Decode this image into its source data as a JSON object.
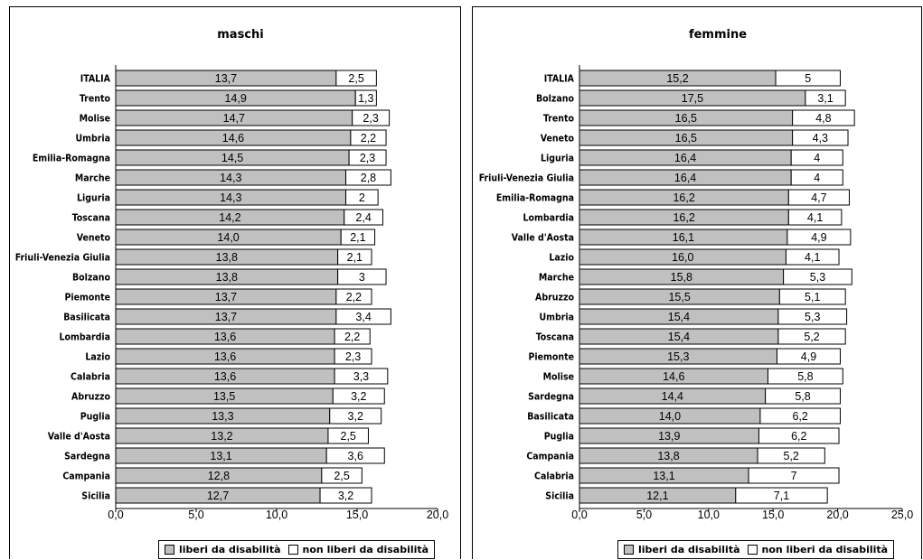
{
  "colors": {
    "free": "#c0c0c0",
    "not_free": "#ffffff",
    "stroke": "#000000"
  },
  "legend": {
    "free_label": "liberi da disabilità",
    "not_free_label": "non liberi da disabilità"
  },
  "chart_data": [
    {
      "type": "bar",
      "orientation": "horizontal",
      "stacked": true,
      "title": "maschi",
      "categories": [
        "ITALIA",
        "Trento",
        "Molise",
        "Umbria",
        "Emilia-Romagna",
        "Marche",
        "Liguria",
        "Toscana",
        "Veneto",
        "Friuli-Venezia Giulia",
        "Bolzano",
        "Piemonte",
        "Basilicata",
        "Lombardia",
        "Lazio",
        "Calabria",
        "Abruzzo",
        "Puglia",
        "Valle d'Aosta",
        "Sardegna",
        "Campania",
        "Sicilia"
      ],
      "series": [
        {
          "name": "liberi da disabilità",
          "values": [
            13.7,
            14.9,
            14.7,
            14.6,
            14.5,
            14.3,
            14.3,
            14.2,
            14.0,
            13.8,
            13.8,
            13.7,
            13.7,
            13.6,
            13.6,
            13.6,
            13.5,
            13.3,
            13.2,
            13.1,
            12.8,
            12.7
          ],
          "labels": [
            "13,7",
            "14,9",
            "14,7",
            "14,6",
            "14,5",
            "14,3",
            "14,3",
            "14,2",
            "14,0",
            "13,8",
            "13,8",
            "13,7",
            "13,7",
            "13,6",
            "13,6",
            "13,6",
            "13,5",
            "13,3",
            "13,2",
            "13,1",
            "12,8",
            "12,7"
          ]
        },
        {
          "name": "non liberi da disabilità",
          "values": [
            2.5,
            1.3,
            2.3,
            2.2,
            2.3,
            2.8,
            2,
            2.4,
            2.1,
            2.1,
            3,
            2.2,
            3.4,
            2.2,
            2.3,
            3.3,
            3.2,
            3.2,
            2.5,
            3.6,
            2.5,
            3.2
          ],
          "labels": [
            "2,5",
            "1,3",
            "2,3",
            "2,2",
            "2,3",
            "2,8",
            "2",
            "2,4",
            "2,1",
            "2,1",
            "3",
            "2,2",
            "3,4",
            "2,2",
            "2,3",
            "3,3",
            "3,2",
            "3,2",
            "2,5",
            "3,6",
            "2,5",
            "3,2"
          ]
        }
      ],
      "xlim": [
        0,
        20
      ],
      "xticks": [
        "0,0",
        "5,0",
        "10,0",
        "15,0",
        "20,0"
      ]
    },
    {
      "type": "bar",
      "orientation": "horizontal",
      "stacked": true,
      "title": "femmine",
      "categories": [
        "ITALIA",
        "Bolzano",
        "Trento",
        "Veneto",
        "Liguria",
        "Friuli-Venezia Giulia",
        "Emilia-Romagna",
        "Lombardia",
        "Valle d'Aosta",
        "Lazio",
        "Marche",
        "Abruzzo",
        "Umbria",
        "Toscana",
        "Piemonte",
        "Molise",
        "Sardegna",
        "Basilicata",
        "Puglia",
        "Campania",
        "Calabria",
        "Sicilia"
      ],
      "series": [
        {
          "name": "liberi da disabilità",
          "values": [
            15.2,
            17.5,
            16.5,
            16.5,
            16.4,
            16.4,
            16.2,
            16.2,
            16.1,
            16.0,
            15.8,
            15.5,
            15.4,
            15.4,
            15.3,
            14.6,
            14.4,
            14.0,
            13.9,
            13.8,
            13.1,
            12.1
          ],
          "labels": [
            "15,2",
            "17,5",
            "16,5",
            "16,5",
            "16,4",
            "16,4",
            "16,2",
            "16,2",
            "16,1",
            "16,0",
            "15,8",
            "15,5",
            "15,4",
            "15,4",
            "15,3",
            "14,6",
            "14,4",
            "14,0",
            "13,9",
            "13,8",
            "13,1",
            "12,1"
          ]
        },
        {
          "name": "non liberi da disabilità",
          "values": [
            5,
            3.1,
            4.8,
            4.3,
            4,
            4,
            4.7,
            4.1,
            4.9,
            4.1,
            5.3,
            5.1,
            5.3,
            5.2,
            4.9,
            5.8,
            5.8,
            6.2,
            6.2,
            5.2,
            7,
            7.1
          ],
          "labels": [
            "5",
            "3,1",
            "4,8",
            "4,3",
            "4",
            "4",
            "4,7",
            "4,1",
            "4,9",
            "4,1",
            "5,3",
            "5,1",
            "5,3",
            "5,2",
            "4,9",
            "5,8",
            "5,8",
            "6,2",
            "6,2",
            "5,2",
            "7",
            "7,1"
          ]
        }
      ],
      "xlim": [
        0,
        25
      ],
      "xticks": [
        "0,0",
        "5,0",
        "10,0",
        "15,0",
        "20,0",
        "25,0"
      ]
    }
  ]
}
